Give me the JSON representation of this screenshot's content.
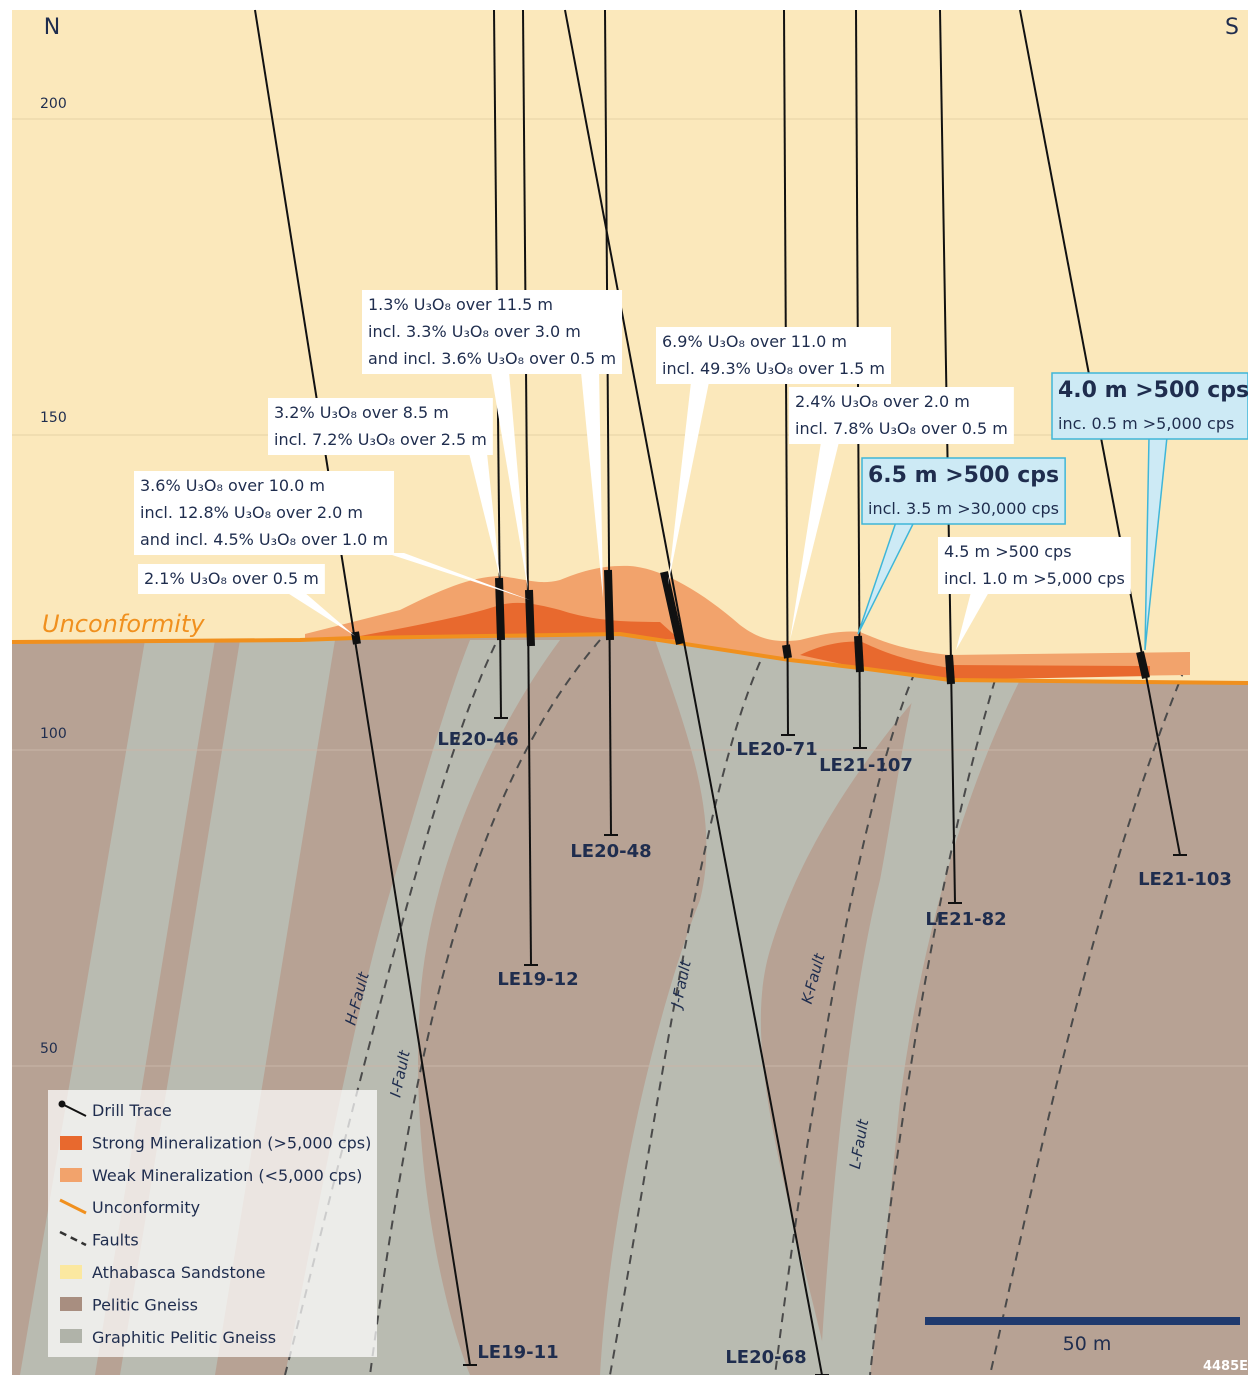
{
  "compass": {
    "north": "N",
    "south": "S"
  },
  "elevations": [
    "200",
    "150",
    "100",
    "50"
  ],
  "unconformity_label": "Unconformity",
  "callouts": [
    {
      "lines": [
        "1.3% U₃O₈ over 11.5 m",
        "incl. 3.3% U₃O₈ over 3.0 m",
        "and incl. 3.6% U₃O₈ over 0.5 m"
      ]
    },
    {
      "lines": [
        "3.2% U₃O₈ over 8.5 m",
        "incl. 7.2% U₃O₈ over  2.5 m"
      ]
    },
    {
      "lines": [
        "3.6% U₃O₈ over 10.0 m",
        "incl. 12.8% U₃O₈ over  2.0 m",
        "and incl. 4.5% U₃O₈ over  1.0 m"
      ]
    },
    {
      "lines": [
        "2.1% U₃O₈ over 0.5 m"
      ]
    },
    {
      "lines": [
        "6.9% U₃O₈ over 11.0 m",
        "incl. 49.3% U₃O₈ over 1.5 m"
      ]
    },
    {
      "lines": [
        "2.4% U₃O₈ over 2.0 m",
        "incl. 7.8% U₃O₈ over 0.5 m"
      ]
    },
    {
      "lines": [
        "6.5 m >500 cps",
        "incl. 3.5 m >30,000 cps"
      ]
    },
    {
      "lines": [
        "4.5 m >500 cps",
        "incl. 1.0 m >5,000 cps"
      ]
    },
    {
      "lines": [
        "4.0 m >500 cps",
        "inc. 0.5 m >5,000 cps"
      ]
    }
  ],
  "drill_holes": [
    "LE19-11",
    "LE20-46",
    "LE19-12",
    "LE20-48",
    "LE20-68",
    "LE20-71",
    "LE21-107",
    "LE21-82",
    "LE21-103"
  ],
  "faults": [
    "H-Fault",
    "I-Fault",
    "J-Fault",
    "K-Fault",
    "L-Fault"
  ],
  "legend": {
    "items": [
      "Drill Trace",
      "Strong Mineralization (>5,000 cps)",
      "Weak Mineralization (<5,000 cps)",
      "Unconformity",
      "Faults",
      "Athabasca Sandstone",
      "Pelitic Gneiss",
      "Graphitic Pelitic Gneiss"
    ]
  },
  "scale_bar": "50 m",
  "figure_id": "4485E"
}
